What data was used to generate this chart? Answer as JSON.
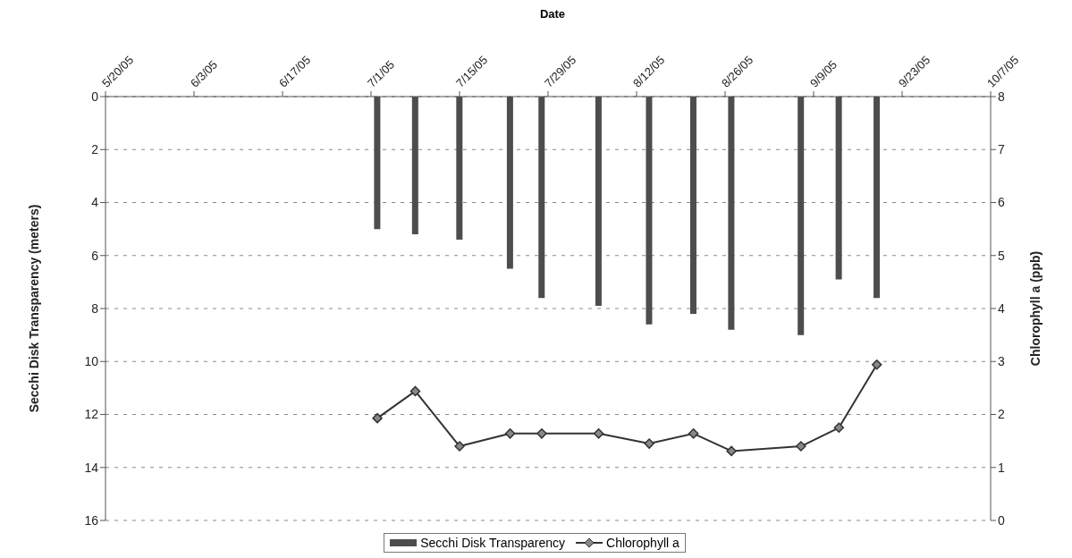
{
  "chart_data": {
    "type": "bar",
    "xlabel": "Date",
    "ylabel": "Secchi Disk Transparency (meters)",
    "y2label": "Chlorophyll a (ppb)",
    "x": [
      "2005-07-02",
      "2005-07-08",
      "2005-07-15",
      "2005-07-23",
      "2005-07-28",
      "2005-08-06",
      "2005-08-14",
      "2005-08-21",
      "2005-08-27",
      "2005-09-07",
      "2005-09-13",
      "2005-09-19"
    ],
    "series": [
      {
        "name": "Secchi Disk Transparency",
        "color": "#4d4d4d",
        "values": [
          5.0,
          5.2,
          5.4,
          6.5,
          7.6,
          7.9,
          8.6,
          8.2,
          8.8,
          9.0,
          6.9,
          7.6
        ]
      },
      {
        "name": "Chlorophyll a",
        "type": "line",
        "axis": "y2",
        "color": "#333333",
        "values": [
          1.93,
          2.44,
          1.4,
          1.64,
          1.64,
          1.64,
          1.45,
          1.64,
          1.31,
          1.4,
          1.75,
          2.94
        ]
      }
    ],
    "xlim": [
      "2005-05-20",
      "2005-10-07"
    ],
    "xticks": [
      {
        "value": "2005-05-20",
        "label": "5/20/05"
      },
      {
        "value": "2005-06-03",
        "label": "6/3/05"
      },
      {
        "value": "2005-06-17",
        "label": "6/17/05"
      },
      {
        "value": "2005-07-01",
        "label": "7/1/05"
      },
      {
        "value": "2005-07-15",
        "label": "7/15/05"
      },
      {
        "value": "2005-07-29",
        "label": "7/29/05"
      },
      {
        "value": "2005-08-12",
        "label": "8/12/05"
      },
      {
        "value": "2005-08-26",
        "label": "8/26/05"
      },
      {
        "value": "2005-09-09",
        "label": "9/9/05"
      },
      {
        "value": "2005-09-23",
        "label": "9/23/05"
      },
      {
        "value": "2005-10-07",
        "label": "10/7/05"
      }
    ],
    "ylim": [
      16,
      0
    ],
    "yticks": [
      0,
      2,
      4,
      6,
      8,
      10,
      12,
      14,
      16
    ],
    "y2lim": [
      0,
      8
    ],
    "y2ticks": [
      0,
      1,
      2,
      3,
      4,
      5,
      6,
      7,
      8
    ],
    "grid": "y",
    "legend": "bottom",
    "marker": "diamond",
    "line_style": "solid"
  }
}
